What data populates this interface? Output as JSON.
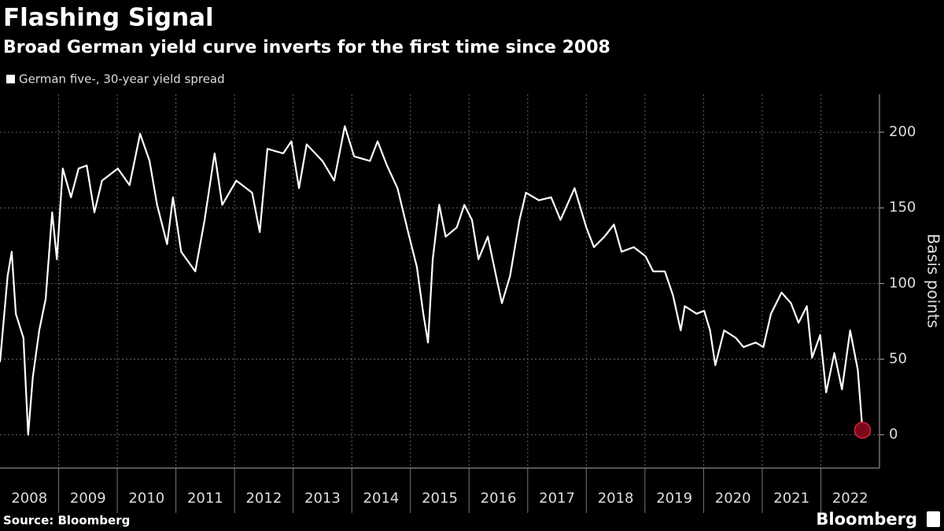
{
  "chart_data": {
    "type": "line",
    "title": "Flashing Signal",
    "subtitle": "Broad German yield curve inverts for the first time since 2008",
    "y_label": "Basis points",
    "source": "Source: Bloomberg",
    "brand": "Bloomberg",
    "x": [
      2008.0,
      2008.13,
      2008.2,
      2008.27,
      2008.4,
      2008.48,
      2008.56,
      2008.67,
      2008.78,
      2008.89,
      2008.97,
      2009.07,
      2009.21,
      2009.34,
      2009.48,
      2009.61,
      2009.74,
      2010.01,
      2010.21,
      2010.39,
      2010.55,
      2010.68,
      2010.85,
      2010.95,
      2011.09,
      2011.33,
      2011.49,
      2011.66,
      2011.79,
      2012.03,
      2012.3,
      2012.43,
      2012.56,
      2012.83,
      2012.97,
      2013.1,
      2013.23,
      2013.5,
      2013.7,
      2013.88,
      2014.04,
      2014.31,
      2014.44,
      2014.6,
      2014.78,
      2014.98,
      2015.11,
      2015.22,
      2015.3,
      2015.38,
      2015.49,
      2015.6,
      2015.79,
      2015.92,
      2016.05,
      2016.16,
      2016.32,
      2016.46,
      2016.56,
      2016.7,
      2016.86,
      2016.97,
      2017.19,
      2017.4,
      2017.56,
      2017.8,
      2018.0,
      2018.13,
      2018.31,
      2018.47,
      2018.6,
      2018.81,
      2019.01,
      2019.14,
      2019.34,
      2019.48,
      2019.61,
      2019.68,
      2019.88,
      2020.01,
      2020.11,
      2020.2,
      2020.35,
      2020.55,
      2020.68,
      2020.89,
      2021.02,
      2021.15,
      2021.33,
      2021.49,
      2021.62,
      2021.76,
      2021.85,
      2021.99,
      2022.09,
      2022.23,
      2022.36,
      2022.5,
      2022.63,
      2022.71
    ],
    "series": [
      {
        "name": "German five-, 30-year yield spread",
        "color": "#ffffff",
        "values": [
          48,
          105,
          121,
          80,
          64,
          0,
          38,
          69,
          90,
          147,
          116,
          176,
          157,
          176,
          178,
          147,
          168,
          176,
          165,
          199,
          181,
          152,
          126,
          157,
          121,
          108,
          142,
          186,
          152,
          168,
          160,
          134,
          189,
          186,
          194,
          163,
          192,
          181,
          168,
          204,
          184,
          181,
          194,
          178,
          163,
          131,
          111,
          80,
          61,
          116,
          152,
          131,
          137,
          152,
          142,
          116,
          131,
          105,
          87,
          105,
          142,
          160,
          155,
          157,
          142,
          163,
          137,
          124,
          131,
          139,
          121,
          124,
          118,
          108,
          108,
          92,
          69,
          85,
          80,
          82,
          69,
          46,
          69,
          64,
          58,
          61,
          58,
          80,
          94,
          87,
          74,
          85,
          51,
          66,
          28,
          54,
          30,
          69,
          43,
          3
        ]
      }
    ],
    "end_marker_color": "#7a0a1a",
    "xlim": [
      2008,
      2023
    ],
    "xticks": [
      2008,
      2009,
      2010,
      2011,
      2012,
      2013,
      2014,
      2015,
      2016,
      2017,
      2018,
      2019,
      2020,
      2021,
      2022
    ],
    "ylim": [
      -22,
      225
    ],
    "yticks": [
      0,
      50,
      100,
      150,
      200
    ],
    "grid": true
  }
}
